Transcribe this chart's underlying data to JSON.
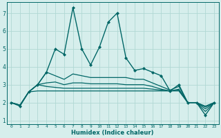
{
  "xlabel": "Humidex (Indice chaleur)",
  "background_color": "#d6eeec",
  "grid_color": "#b0d8d4",
  "line_color": "#006666",
  "xlim": [
    -0.5,
    23.5
  ],
  "ylim": [
    0.8,
    7.6
  ],
  "xticks": [
    0,
    1,
    2,
    3,
    4,
    5,
    6,
    7,
    8,
    9,
    10,
    11,
    12,
    13,
    14,
    15,
    16,
    17,
    18,
    19,
    20,
    21,
    22,
    23
  ],
  "yticks": [
    1,
    2,
    3,
    4,
    5,
    6,
    7
  ],
  "lines": [
    {
      "x": [
        0,
        1,
        2,
        3,
        4,
        5,
        6,
        7,
        8,
        9,
        10,
        11,
        12,
        13,
        14,
        15,
        16,
        17,
        18,
        19,
        20,
        21,
        22,
        23
      ],
      "y": [
        2.0,
        1.8,
        2.6,
        3.0,
        3.7,
        5.0,
        4.7,
        7.3,
        5.0,
        4.1,
        5.1,
        6.5,
        7.0,
        4.5,
        3.8,
        3.9,
        3.7,
        3.5,
        2.65,
        3.0,
        2.0,
        2.0,
        1.3,
        2.0
      ],
      "marker": "D",
      "markersize": 2.0,
      "linewidth": 1.0,
      "has_marker": true
    },
    {
      "x": [
        0,
        1,
        2,
        3,
        4,
        5,
        6,
        7,
        8,
        9,
        10,
        11,
        12,
        13,
        14,
        15,
        16,
        17,
        18,
        19,
        20,
        21,
        22,
        23
      ],
      "y": [
        2.0,
        1.85,
        2.6,
        3.0,
        3.7,
        3.5,
        3.3,
        3.6,
        3.5,
        3.4,
        3.4,
        3.4,
        3.4,
        3.4,
        3.3,
        3.3,
        3.1,
        2.9,
        2.7,
        2.9,
        2.0,
        2.0,
        1.5,
        2.0
      ],
      "marker": null,
      "markersize": 0,
      "linewidth": 0.9,
      "has_marker": false
    },
    {
      "x": [
        0,
        1,
        2,
        3,
        4,
        5,
        6,
        7,
        8,
        9,
        10,
        11,
        12,
        13,
        14,
        15,
        16,
        17,
        18,
        19,
        20,
        21,
        22,
        23
      ],
      "y": [
        2.0,
        1.85,
        2.6,
        3.0,
        2.9,
        2.85,
        2.8,
        2.8,
        2.8,
        2.8,
        2.8,
        2.8,
        2.8,
        2.8,
        2.8,
        2.8,
        2.75,
        2.7,
        2.65,
        2.7,
        2.0,
        2.0,
        1.75,
        2.0
      ],
      "marker": null,
      "markersize": 0,
      "linewidth": 0.9,
      "has_marker": false
    },
    {
      "x": [
        0,
        1,
        2,
        3,
        4,
        5,
        6,
        7,
        8,
        9,
        10,
        11,
        12,
        13,
        14,
        15,
        16,
        17,
        18,
        19,
        20,
        21,
        22,
        23
      ],
      "y": [
        2.0,
        1.85,
        2.6,
        2.65,
        2.65,
        2.65,
        2.65,
        2.65,
        2.65,
        2.65,
        2.65,
        2.65,
        2.65,
        2.65,
        2.65,
        2.65,
        2.65,
        2.65,
        2.65,
        2.65,
        2.0,
        2.0,
        1.8,
        2.0
      ],
      "marker": null,
      "markersize": 0,
      "linewidth": 0.9,
      "has_marker": false
    },
    {
      "x": [
        0,
        1,
        2,
        3,
        4,
        5,
        6,
        7,
        8,
        9,
        10,
        11,
        12,
        13,
        14,
        15,
        16,
        17,
        18,
        19,
        20,
        21,
        22,
        23
      ],
      "y": [
        2.0,
        1.85,
        2.6,
        3.0,
        3.1,
        3.15,
        3.0,
        3.1,
        3.1,
        3.05,
        3.05,
        3.05,
        3.05,
        3.0,
        3.0,
        3.0,
        2.9,
        2.75,
        2.65,
        2.75,
        2.0,
        2.0,
        1.65,
        2.0
      ],
      "marker": null,
      "markersize": 0,
      "linewidth": 0.9,
      "has_marker": false
    }
  ]
}
